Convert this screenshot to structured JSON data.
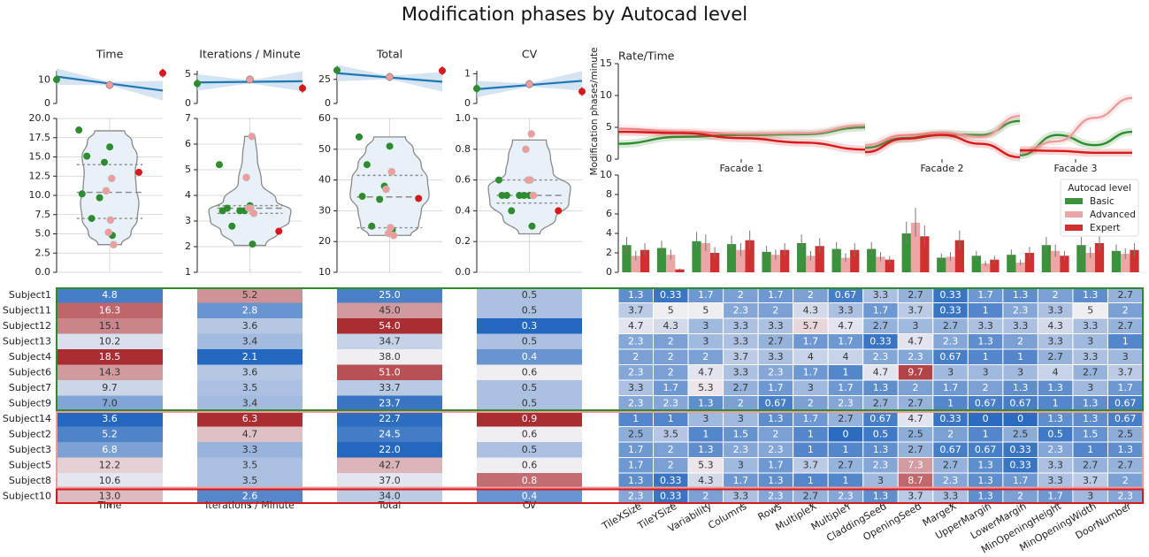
{
  "title": "Modification phases by Autocad level",
  "colors": {
    "Basic": "#2e8b2e",
    "Advanced": "#f19c9c",
    "Expert": "#d7191c",
    "BasicBar": "#3a923a",
    "AdvancedBar": "#eea5a5",
    "ExpertBar": "#d03030",
    "regline": "#1f77b4",
    "ci": "#c6dbef",
    "violet": "#e8f1f8"
  },
  "chart_data": [
    {
      "type": "scatter",
      "panel": "metric-regressions",
      "note": "top strip per metric: level (Basic/Advanced/Expert) vs metric mean with regression line and CI band",
      "metrics": [
        {
          "title": "Time",
          "yticks": [
            0,
            10
          ],
          "ylim": [
            0,
            14
          ],
          "means": [
            10.2,
            7.9,
            13.0
          ],
          "fit": [
            11.5,
            8.5
          ]
        },
        {
          "title": "Iterations / Minute",
          "yticks": [
            0,
            5
          ],
          "ylim": [
            0,
            5.6
          ],
          "means": [
            3.4,
            4.1,
            2.6
          ],
          "fit": [
            3.6,
            3.7
          ]
        },
        {
          "title": "Total",
          "yticks": [
            0,
            25
          ],
          "ylim": [
            0,
            34
          ],
          "means": [
            34.5,
            27.5,
            34.0
          ],
          "fit": [
            31.5,
            27.0
          ]
        },
        {
          "title": "CV",
          "yticks": [
            0,
            1
          ],
          "ylim": [
            0,
            1.1
          ],
          "means": [
            0.5,
            0.65,
            0.4
          ],
          "fit": [
            0.48,
            0.62
          ]
        }
      ]
    },
    {
      "type": "scatter",
      "panel": "metric-violins",
      "metrics": [
        {
          "title": "Time",
          "ylim": [
            0,
            20
          ],
          "yticks": [
            0.0,
            2.5,
            5.0,
            7.5,
            10.0,
            12.5,
            15.0,
            17.5,
            20.0
          ],
          "quartiles": [
            7.0,
            10.4,
            14.0
          ],
          "violin": [
            [
              3.6,
              0.22
            ],
            [
              5,
              0.4
            ],
            [
              7,
              0.52
            ],
            [
              9,
              0.55
            ],
            [
              11,
              0.5
            ],
            [
              13,
              0.48
            ],
            [
              15,
              0.52
            ],
            [
              17,
              0.42
            ],
            [
              18.4,
              0.28
            ]
          ],
          "basic": [
            18.5,
            16.3,
            15.1,
            14.3,
            10.2,
            9.7,
            7.0,
            4.8
          ],
          "advanced": [
            12.2,
            10.6,
            6.8,
            5.2,
            3.6
          ],
          "expert": [
            13.0
          ]
        },
        {
          "title": "Iterations / Minute",
          "ylim": [
            1,
            7
          ],
          "yticks": [
            1,
            2,
            3,
            4,
            5,
            6,
            7
          ],
          "quartiles": [
            3.3,
            3.5,
            3.6
          ],
          "violin": [
            [
              2.05,
              0.3
            ],
            [
              2.6,
              0.55
            ],
            [
              3.0,
              0.75
            ],
            [
              3.4,
              0.78
            ],
            [
              3.8,
              0.5
            ],
            [
              4.5,
              0.22
            ],
            [
              5.5,
              0.14
            ],
            [
              6.3,
              0.1
            ]
          ],
          "basic": [
            5.2,
            3.6,
            3.5,
            3.4,
            3.4,
            3.4,
            2.8,
            2.1
          ],
          "advanced": [
            6.3,
            4.7,
            3.5,
            3.5,
            3.3
          ],
          "expert": [
            2.6
          ]
        },
        {
          "title": "Total",
          "ylim": [
            10,
            60
          ],
          "yticks": [
            10,
            20,
            30,
            40,
            50,
            60
          ],
          "quartiles": [
            24.5,
            34.5,
            41.5
          ],
          "violin": [
            [
              22,
              0.4
            ],
            [
              25,
              0.55
            ],
            [
              30,
              0.6
            ],
            [
              35,
              0.75
            ],
            [
              40,
              0.72
            ],
            [
              45,
              0.6
            ],
            [
              50,
              0.45
            ],
            [
              54,
              0.3
            ]
          ],
          "basic": [
            54.0,
            51.0,
            45.0,
            38.0,
            34.7,
            33.7,
            25.0,
            23.7
          ],
          "advanced": [
            42.7,
            37.0,
            24.5,
            22.7,
            22.0
          ],
          "expert": [
            34.0
          ]
        },
        {
          "title": "CV",
          "ylim": [
            0.0,
            1.0
          ],
          "yticks": [
            0.0,
            0.2,
            0.4,
            0.6,
            0.8,
            1.0
          ],
          "quartiles": [
            0.45,
            0.5,
            0.6
          ],
          "violin": [
            [
              0.25,
              0.2
            ],
            [
              0.35,
              0.5
            ],
            [
              0.45,
              0.75
            ],
            [
              0.55,
              0.78
            ],
            [
              0.65,
              0.45
            ],
            [
              0.75,
              0.4
            ],
            [
              0.86,
              0.32
            ]
          ],
          "basic": [
            0.6,
            0.5,
            0.5,
            0.5,
            0.5,
            0.5,
            0.4,
            0.3
          ],
          "advanced": [
            0.9,
            0.8,
            0.6,
            0.6,
            0.5
          ],
          "expert": [
            0.4
          ]
        }
      ]
    },
    {
      "type": "line",
      "panel": "rate-time",
      "title": "Rate/Time",
      "ylabel": "Modification phases/minute",
      "ylim": [
        0,
        15
      ],
      "yticks": [
        0,
        5,
        10,
        15
      ],
      "facades": [
        "Facade 1",
        "Facade 2",
        "Facade 3"
      ],
      "series": [
        {
          "name": "Basic",
          "segments": [
            [
              2.4,
              3.5,
              3.8,
              3.9,
              5.0
            ],
            [
              1.8,
              3.3,
              3.9,
              3.8,
              6.0
            ],
            [
              0.6,
              3.8,
              2.2,
              4.3
            ]
          ]
        },
        {
          "name": "Advanced",
          "segments": [
            [
              4.8,
              4.3,
              4.0,
              4.1,
              5.3
            ],
            [
              2.2,
              3.8,
              4.1,
              3.5,
              6.8
            ],
            [
              1.2,
              2.8,
              6.5,
              9.6
            ]
          ]
        },
        {
          "name": "Expert",
          "segments": [
            [
              4.3,
              4.1,
              3.3,
              2.6,
              1.5
            ],
            [
              1.1,
              3.2,
              3.8,
              2.4,
              0.3
            ],
            [
              1.4,
              1.3,
              1.0,
              1.0
            ]
          ]
        }
      ]
    },
    {
      "type": "bar",
      "panel": "param-bars",
      "ylim": [
        0,
        10
      ],
      "yticks": [
        0,
        2,
        4,
        6,
        8,
        10
      ],
      "legend_title": "Autocad level",
      "legend_position": "upper-right",
      "categories": [
        "TileXSize",
        "TileYSize",
        "Variability",
        "Columns",
        "Rows",
        "MultipleX",
        "MultipleY",
        "CladdingSeed",
        "OpeningSeed",
        "MargeX",
        "UpperMargin",
        "LowerMargin",
        "MinOpeningHeight",
        "MinOpeningWidth",
        "DoorNumber"
      ],
      "series": [
        {
          "name": "Basic",
          "values": [
            2.8,
            2.5,
            3.2,
            2.9,
            2.1,
            3.0,
            2.4,
            2.4,
            4.0,
            1.5,
            1.7,
            1.8,
            2.8,
            2.8,
            2.2
          ]
        },
        {
          "name": "Advanced",
          "values": [
            1.7,
            1.8,
            3.0,
            2.3,
            1.8,
            1.7,
            1.5,
            1.6,
            5.1,
            1.6,
            0.9,
            1.0,
            2.2,
            2.0,
            1.9
          ]
        },
        {
          "name": "Expert",
          "values": [
            2.3,
            0.3,
            2.0,
            3.3,
            2.3,
            2.7,
            2.3,
            1.3,
            3.7,
            3.3,
            1.3,
            2.0,
            1.7,
            3.0,
            2.3
          ]
        }
      ]
    },
    {
      "type": "heatmap",
      "panel": "subject-metrics",
      "columns": [
        "Time",
        "Iterations / Minute",
        "Total",
        "CV"
      ],
      "rows": [
        {
          "subject": "Subject1",
          "level": "Basic",
          "values": [
            "4.8",
            "5.2",
            "25.0",
            "0.5"
          ]
        },
        {
          "subject": "Subject11",
          "level": "Basic",
          "values": [
            "16.3",
            "2.8",
            "45.0",
            "0.5"
          ]
        },
        {
          "subject": "Subject12",
          "level": "Basic",
          "values": [
            "15.1",
            "3.6",
            "54.0",
            "0.3"
          ]
        },
        {
          "subject": "Subject13",
          "level": "Basic",
          "values": [
            "10.2",
            "3.4",
            "34.7",
            "0.5"
          ]
        },
        {
          "subject": "Subject4",
          "level": "Basic",
          "values": [
            "18.5",
            "2.1",
            "38.0",
            "0.4"
          ]
        },
        {
          "subject": "Subject6",
          "level": "Basic",
          "values": [
            "14.3",
            "3.6",
            "51.0",
            "0.6"
          ]
        },
        {
          "subject": "Subject7",
          "level": "Basic",
          "values": [
            "9.7",
            "3.5",
            "33.7",
            "0.5"
          ]
        },
        {
          "subject": "Subject9",
          "level": "Basic",
          "values": [
            "7.0",
            "3.4",
            "23.7",
            "0.5"
          ]
        },
        {
          "subject": "Subject14",
          "level": "Advanced",
          "values": [
            "3.6",
            "6.3",
            "22.7",
            "0.9"
          ]
        },
        {
          "subject": "Subject2",
          "level": "Advanced",
          "values": [
            "5.2",
            "4.7",
            "24.5",
            "0.6"
          ]
        },
        {
          "subject": "Subject3",
          "level": "Advanced",
          "values": [
            "6.8",
            "3.3",
            "22.0",
            "0.5"
          ]
        },
        {
          "subject": "Subject5",
          "level": "Advanced",
          "values": [
            "12.2",
            "3.5",
            "42.7",
            "0.6"
          ]
        },
        {
          "subject": "Subject8",
          "level": "Advanced",
          "values": [
            "10.6",
            "3.5",
            "37.0",
            "0.8"
          ]
        },
        {
          "subject": "Subject10",
          "level": "Expert",
          "values": [
            "13.0",
            "2.6",
            "34.0",
            "0.4"
          ]
        }
      ]
    },
    {
      "type": "heatmap",
      "panel": "subject-params",
      "columns": [
        "TileXSize",
        "TileYSize",
        "Variability",
        "Columns",
        "Rows",
        "MultipleX",
        "MultipleY",
        "CladdingSeed",
        "OpeningSeed",
        "MargeX",
        "UpperMargin",
        "LowerMargin",
        "MinOpeningHeight",
        "MinOpeningWidth",
        "DoorNumber"
      ],
      "rows": [
        [
          "1.3",
          "0.33",
          "1.7",
          "2",
          "1.7",
          "2",
          "0.67",
          "3.3",
          "2.7",
          "0.33",
          "1.7",
          "1.3",
          "2",
          "1.3",
          "2.7"
        ],
        [
          "3.7",
          "5",
          "5",
          "2.3",
          "2",
          "4.3",
          "3.3",
          "1.7",
          "3.7",
          "0.33",
          "1",
          "2.3",
          "3.3",
          "5",
          "2"
        ],
        [
          "4.7",
          "4.3",
          "3",
          "3.3",
          "3.3",
          "5.7",
          "4.7",
          "2.7",
          "3",
          "2.7",
          "3.3",
          "3.3",
          "4.3",
          "3.3",
          "2.7"
        ],
        [
          "2.3",
          "2",
          "3",
          "3.3",
          "2.7",
          "1.7",
          "1.7",
          "0.33",
          "4.7",
          "2.3",
          "1.3",
          "2",
          "3.3",
          "3",
          "1"
        ],
        [
          "2",
          "2",
          "2",
          "3.7",
          "3.3",
          "4",
          "4",
          "2.3",
          "2.3",
          "0.67",
          "1",
          "1",
          "2.7",
          "3.3",
          "3"
        ],
        [
          "2.3",
          "2",
          "4.7",
          "3.3",
          "2.3",
          "1.7",
          "1",
          "4.7",
          "9.7",
          "3",
          "3",
          "3",
          "4",
          "2.7",
          "3.7"
        ],
        [
          "3.3",
          "1.7",
          "5.3",
          "2.7",
          "1.7",
          "3",
          "1.7",
          "1.3",
          "2",
          "1.7",
          "2",
          "1.3",
          "1.3",
          "3",
          "1.7"
        ],
        [
          "2.3",
          "2.3",
          "1.3",
          "2",
          "0.67",
          "2",
          "2.3",
          "2.7",
          "2.7",
          "1",
          "0.67",
          "0.67",
          "1",
          "1.3",
          "0.67"
        ],
        [
          "1",
          "1",
          "3",
          "3",
          "1.3",
          "1.7",
          "2.7",
          "0.67",
          "4.7",
          "0.33",
          "0",
          "0",
          "1.3",
          "1.3",
          "0.67"
        ],
        [
          "2.5",
          "3.5",
          "1",
          "1.5",
          "2",
          "1",
          "0",
          "0.5",
          "2.5",
          "2",
          "1",
          "2.5",
          "0.5",
          "1.5",
          "2.5"
        ],
        [
          "1.7",
          "2",
          "1.3",
          "2.3",
          "2.3",
          "1",
          "1",
          "1.3",
          "2.7",
          "0.67",
          "0.67",
          "0.33",
          "2.3",
          "1",
          "1.3"
        ],
        [
          "1.7",
          "2",
          "5.3",
          "3",
          "1.7",
          "3.7",
          "2.7",
          "2.3",
          "7.3",
          "2.7",
          "1.3",
          "0.33",
          "3.3",
          "2.7",
          "2.7"
        ],
        [
          "1.3",
          "0.33",
          "4.3",
          "1.7",
          "1.3",
          "1",
          "1",
          "3",
          "8.7",
          "2.3",
          "1.3",
          "1.7",
          "3.3",
          "3.7",
          "2"
        ],
        [
          "2.3",
          "0.33",
          "2",
          "3.3",
          "2.3",
          "2.7",
          "2.3",
          "1.3",
          "3.7",
          "3.3",
          "1.3",
          "2",
          "1.7",
          "3",
          "2.3"
        ]
      ]
    }
  ]
}
